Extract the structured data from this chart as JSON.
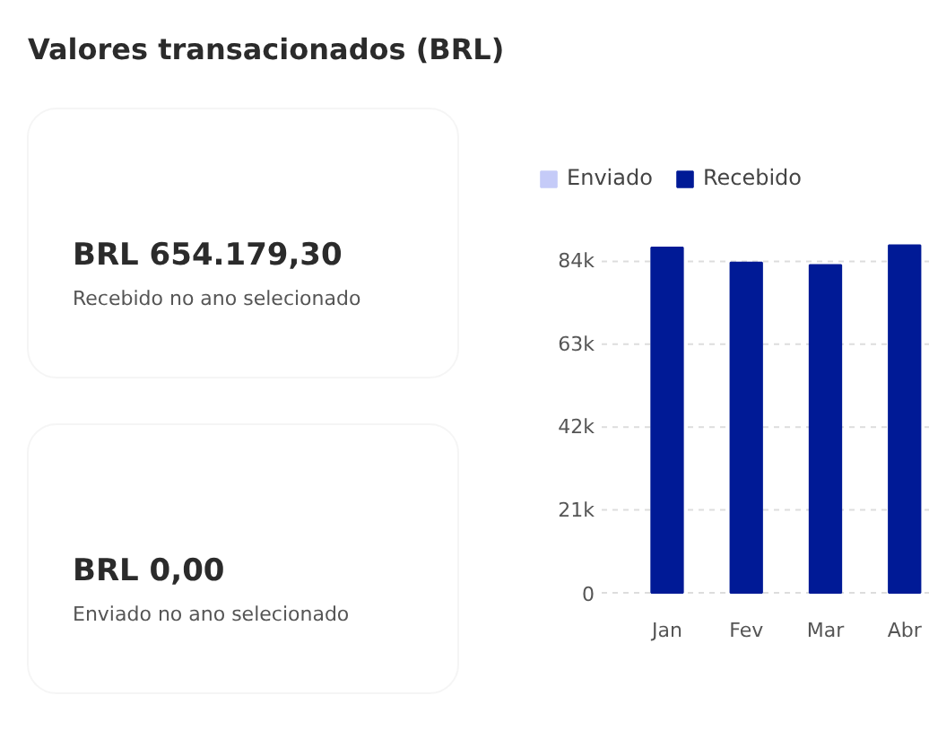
{
  "chart_data": [
    {
      "type": "other",
      "title": "Valores transacionados (BRL)",
      "annotations": [
        "BRL 654.179,30",
        "Recebido no ano selecionado",
        "BRL 0,00",
        "Enviado no ano selecionado"
      ]
    },
    {
      "type": "bar",
      "categories": [
        "Jan",
        "Fev",
        "Mar",
        "Abr"
      ],
      "series": [
        {
          "name": "Enviado",
          "color": "#c5cbf8",
          "values": [
            0,
            0,
            0,
            0
          ]
        },
        {
          "name": "Recebido",
          "color": "#001a96",
          "values": [
            87500,
            83700,
            83100,
            88100
          ]
        }
      ],
      "ylim": [
        0,
        88200
      ],
      "yticks": [
        0,
        {
          "value": 21000,
          "label": "21k"
        },
        {
          "value": 42000,
          "label": "42k"
        },
        {
          "value": 63000,
          "label": "63k"
        },
        {
          "value": 84000,
          "label": "84k"
        }
      ],
      "grid": "y",
      "legend": "top left"
    }
  ]
}
